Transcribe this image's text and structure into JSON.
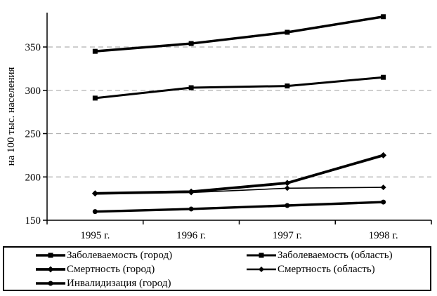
{
  "colors": {
    "background": "#ffffff",
    "line": "#000000",
    "grid": "#b0b0b0",
    "text": "#000000",
    "legend_border": "#000000"
  },
  "chart_data": {
    "type": "line",
    "title": "",
    "xlabel": "",
    "ylabel": "на 100 тыс. населения",
    "categories": [
      "1995 г.",
      "1996 г.",
      "1997 г.",
      "1998 г."
    ],
    "yticks": [
      150,
      200,
      250,
      300,
      350
    ],
    "gridlines_at": [
      200,
      250,
      300,
      350
    ],
    "grid_style": "dashed",
    "ylim": [
      150,
      390
    ],
    "legend_position": "bottom-box-two-columns",
    "series": [
      {
        "name": "Заболеваемость (город)",
        "marker": "square",
        "marker_size": 7,
        "line_width": 3.5,
        "values": [
          345,
          354,
          367,
          385
        ]
      },
      {
        "name": "Заболеваемость (область)",
        "marker": "square",
        "marker_size": 7,
        "line_width": 3.0,
        "values": [
          291,
          303,
          305,
          315
        ]
      },
      {
        "name": "Смертность (город)",
        "marker": "diamond",
        "marker_size": 7,
        "line_width": 3.8,
        "values": [
          181,
          183,
          193,
          225
        ]
      },
      {
        "name": "Смертность (область)",
        "marker": "diamond",
        "marker_size": 6,
        "line_width": 1.6,
        "values": [
          181,
          182,
          187,
          188
        ]
      },
      {
        "name": "Инвалидизация (город)",
        "marker": "circle",
        "marker_size": 7,
        "line_width": 3.4,
        "values": [
          160,
          163,
          167,
          171
        ]
      }
    ]
  }
}
